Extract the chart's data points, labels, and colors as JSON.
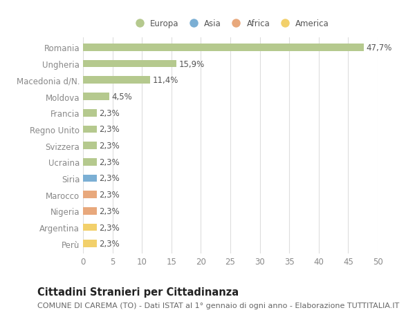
{
  "categories": [
    "Romania",
    "Ungheria",
    "Macedonia d/N.",
    "Moldova",
    "Francia",
    "Regno Unito",
    "Svizzera",
    "Ucraina",
    "Siria",
    "Marocco",
    "Nigeria",
    "Argentina",
    "Perù"
  ],
  "values": [
    47.7,
    15.9,
    11.4,
    4.5,
    2.3,
    2.3,
    2.3,
    2.3,
    2.3,
    2.3,
    2.3,
    2.3,
    2.3
  ],
  "labels": [
    "47,7%",
    "15,9%",
    "11,4%",
    "4,5%",
    "2,3%",
    "2,3%",
    "2,3%",
    "2,3%",
    "2,3%",
    "2,3%",
    "2,3%",
    "2,3%",
    "2,3%"
  ],
  "continents": [
    "Europa",
    "Europa",
    "Europa",
    "Europa",
    "Europa",
    "Europa",
    "Europa",
    "Europa",
    "Asia",
    "Africa",
    "Africa",
    "America",
    "America"
  ],
  "continent_colors": {
    "Europa": "#b5c98e",
    "Asia": "#7bafd4",
    "Africa": "#e8a87c",
    "America": "#f2d06b"
  },
  "legend_order": [
    "Europa",
    "Asia",
    "Africa",
    "America"
  ],
  "legend_colors": [
    "#b5c98e",
    "#7bafd4",
    "#e8a87c",
    "#f2d06b"
  ],
  "title": "Cittadini Stranieri per Cittadinanza",
  "subtitle": "COMUNE DI CAREMA (TO) - Dati ISTAT al 1° gennaio di ogni anno - Elaborazione TUTTITALIA.IT",
  "xlim": [
    0,
    50
  ],
  "xticks": [
    0,
    5,
    10,
    15,
    20,
    25,
    30,
    35,
    40,
    45,
    50
  ],
  "bg_color": "#ffffff",
  "grid_color": "#dddddd",
  "bar_height": 0.45,
  "label_fontsize": 8.5,
  "tick_fontsize": 8.5,
  "title_fontsize": 10.5,
  "subtitle_fontsize": 8.0
}
